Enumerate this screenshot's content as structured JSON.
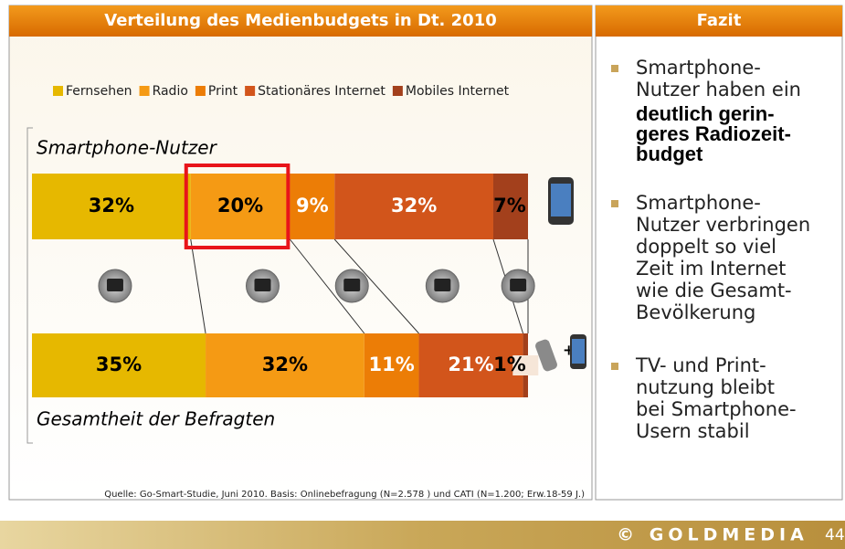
{
  "chart_data": {
    "type": "bar",
    "orientation": "horizontal",
    "stacked": true,
    "title": "Verteilung des Medienbudgets in Dt. 2010",
    "categories": [
      "Smartphone-Nutzer",
      "Gesamtheit der Befragten"
    ],
    "series": [
      {
        "name": "Fernsehen",
        "color": "#e6b800",
        "values": [
          32,
          35
        ],
        "value_labels": [
          "32%",
          "35%"
        ]
      },
      {
        "name": "Radio",
        "color": "#f59a14",
        "values": [
          20,
          32
        ],
        "value_labels": [
          "20%",
          "32%"
        ]
      },
      {
        "name": "Print",
        "color": "#ec7d06",
        "values": [
          9,
          11
        ],
        "value_labels": [
          "9%",
          "11%"
        ]
      },
      {
        "name": "Stationäres Internet",
        "color": "#d2551b",
        "values": [
          32,
          21
        ],
        "value_labels": [
          "32%",
          "21%"
        ]
      },
      {
        "name": "Mobiles Internet",
        "color": "#a3401c",
        "values": [
          7,
          1
        ],
        "value_labels": [
          "7%",
          "1%"
        ]
      }
    ],
    "source": "Quelle: Go-Smart-Studie, Juni 2010. Basis: Onlinebefragung (N=2.578 ) und CATI (N=1.200; Erw.18-59 J.)"
  },
  "fazit": {
    "title": "Fazit",
    "bullets": [
      {
        "lines": [
          "Smartphone-",
          "Nutzer haben ein"
        ],
        "emphasis_lines": [
          "deutlich gerin-",
          "geres Radiozeit-",
          "budget"
        ]
      },
      {
        "lines": [
          "Smartphone-",
          "Nutzer verbringen",
          "doppelt so viel",
          "Zeit im Internet",
          "wie die Gesamt-",
          "Bevölkerung"
        ]
      },
      {
        "lines": [
          "TV- und Print-",
          "nutzung bleibt",
          "bei Smartphone-",
          "Usern stabil"
        ]
      }
    ]
  },
  "footer": {
    "brand": "© GOLDMEDIA",
    "page": "44"
  }
}
